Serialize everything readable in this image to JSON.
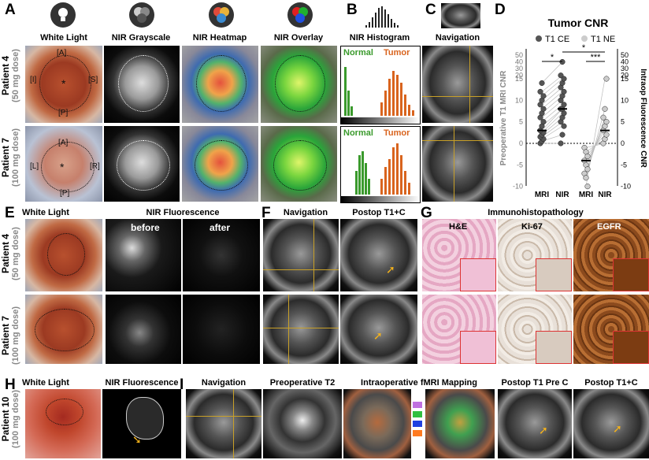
{
  "panel_letters": {
    "A": "A",
    "B": "B",
    "C": "C",
    "D": "D",
    "E": "E",
    "F": "F",
    "G": "G",
    "H": "H",
    "I": "I"
  },
  "row_a": {
    "col_headers": [
      "White Light",
      "NIR Grayscale",
      "NIR Heatmap",
      "NIR Overlay"
    ],
    "histogram_header": "NIR Histogram",
    "navigation_header": "Navigation",
    "annotations": {
      "A": "[A]",
      "P": "[P]",
      "I": "[I]",
      "S": "[S]",
      "L": "[L]",
      "R": "[R]",
      "star": "*"
    },
    "hist_labels": {
      "normal": "Normal",
      "tumor": "Tumor"
    }
  },
  "patients": {
    "p4": {
      "name": "Patient 4",
      "dose": "(50 mg dose)"
    },
    "p7": {
      "name": "Patient 7",
      "dose": "(100 mg dose)"
    },
    "p10": {
      "name": "Patient 10",
      "dose": "(100 mg dose)"
    }
  },
  "row_e": {
    "white_light": "White Light",
    "nir_fluor": "NIR Fluorescence",
    "before": "before",
    "after": "after",
    "navigation": "Navigation",
    "postop": "Postop T1+C",
    "immuno": "Immunohistopathology",
    "stains": [
      "H&E",
      "Ki-67",
      "EGFR"
    ]
  },
  "row_h": {
    "white_light": "White Light",
    "nir_fluor": "NIR Fluorescence",
    "navigation": "Navigation",
    "preop_t2": "Preoperative T2",
    "fmri": "Intraoperative fMRI Mapping",
    "postop_pre": "Postop T1 Pre C",
    "postop_post": "Postop T1+C"
  },
  "colors": {
    "normal": "#3a9a2c",
    "tumor": "#d9641e",
    "accent": "#c8a028"
  },
  "chart_data": {
    "type": "scatter",
    "title": "Tumor CNR",
    "legend": [
      {
        "name": "T1 CE",
        "color": "#555555"
      },
      {
        "name": "T1 NE",
        "color": "#cccccc"
      }
    ],
    "ylabel_left": "Preoperative T1 MRI CNR",
    "ylabel_right": "Intraop Fluorescence CNR",
    "categories": [
      "MRI",
      "NIR",
      "MRI",
      "NIR"
    ],
    "yticks_left": [
      "50",
      "40",
      "30",
      "20",
      "15",
      "10",
      "5",
      "0",
      "-5",
      "-10"
    ],
    "yticks_right": [
      "50",
      "40",
      "30",
      "20",
      "15",
      "10",
      "5",
      "0",
      "-5",
      "-10"
    ],
    "significance": [
      "*",
      "*",
      "***"
    ],
    "series": [
      {
        "name": "T1 CE MRI",
        "values": [
          0,
          0.5,
          1,
          1.5,
          2,
          2.5,
          3,
          4,
          5,
          6,
          7,
          8,
          9,
          10,
          11,
          12,
          14
        ]
      },
      {
        "name": "T1 CE NIR",
        "values": [
          0,
          2,
          4,
          5,
          6,
          7,
          8,
          8,
          9,
          10,
          11,
          12,
          13,
          14,
          15,
          20,
          40
        ]
      },
      {
        "name": "T1 NE MRI",
        "values": [
          -1,
          -2,
          -3,
          -4,
          -5,
          -6,
          -7,
          -8,
          -10
        ]
      },
      {
        "name": "T1 NE NIR",
        "values": [
          0,
          1,
          2,
          3,
          4,
          5,
          6,
          8,
          15
        ]
      }
    ],
    "mean_marks": {
      "ce_mri": 3,
      "ce_nir": 8,
      "ne_mri": -4,
      "ne_nir": 3
    }
  }
}
